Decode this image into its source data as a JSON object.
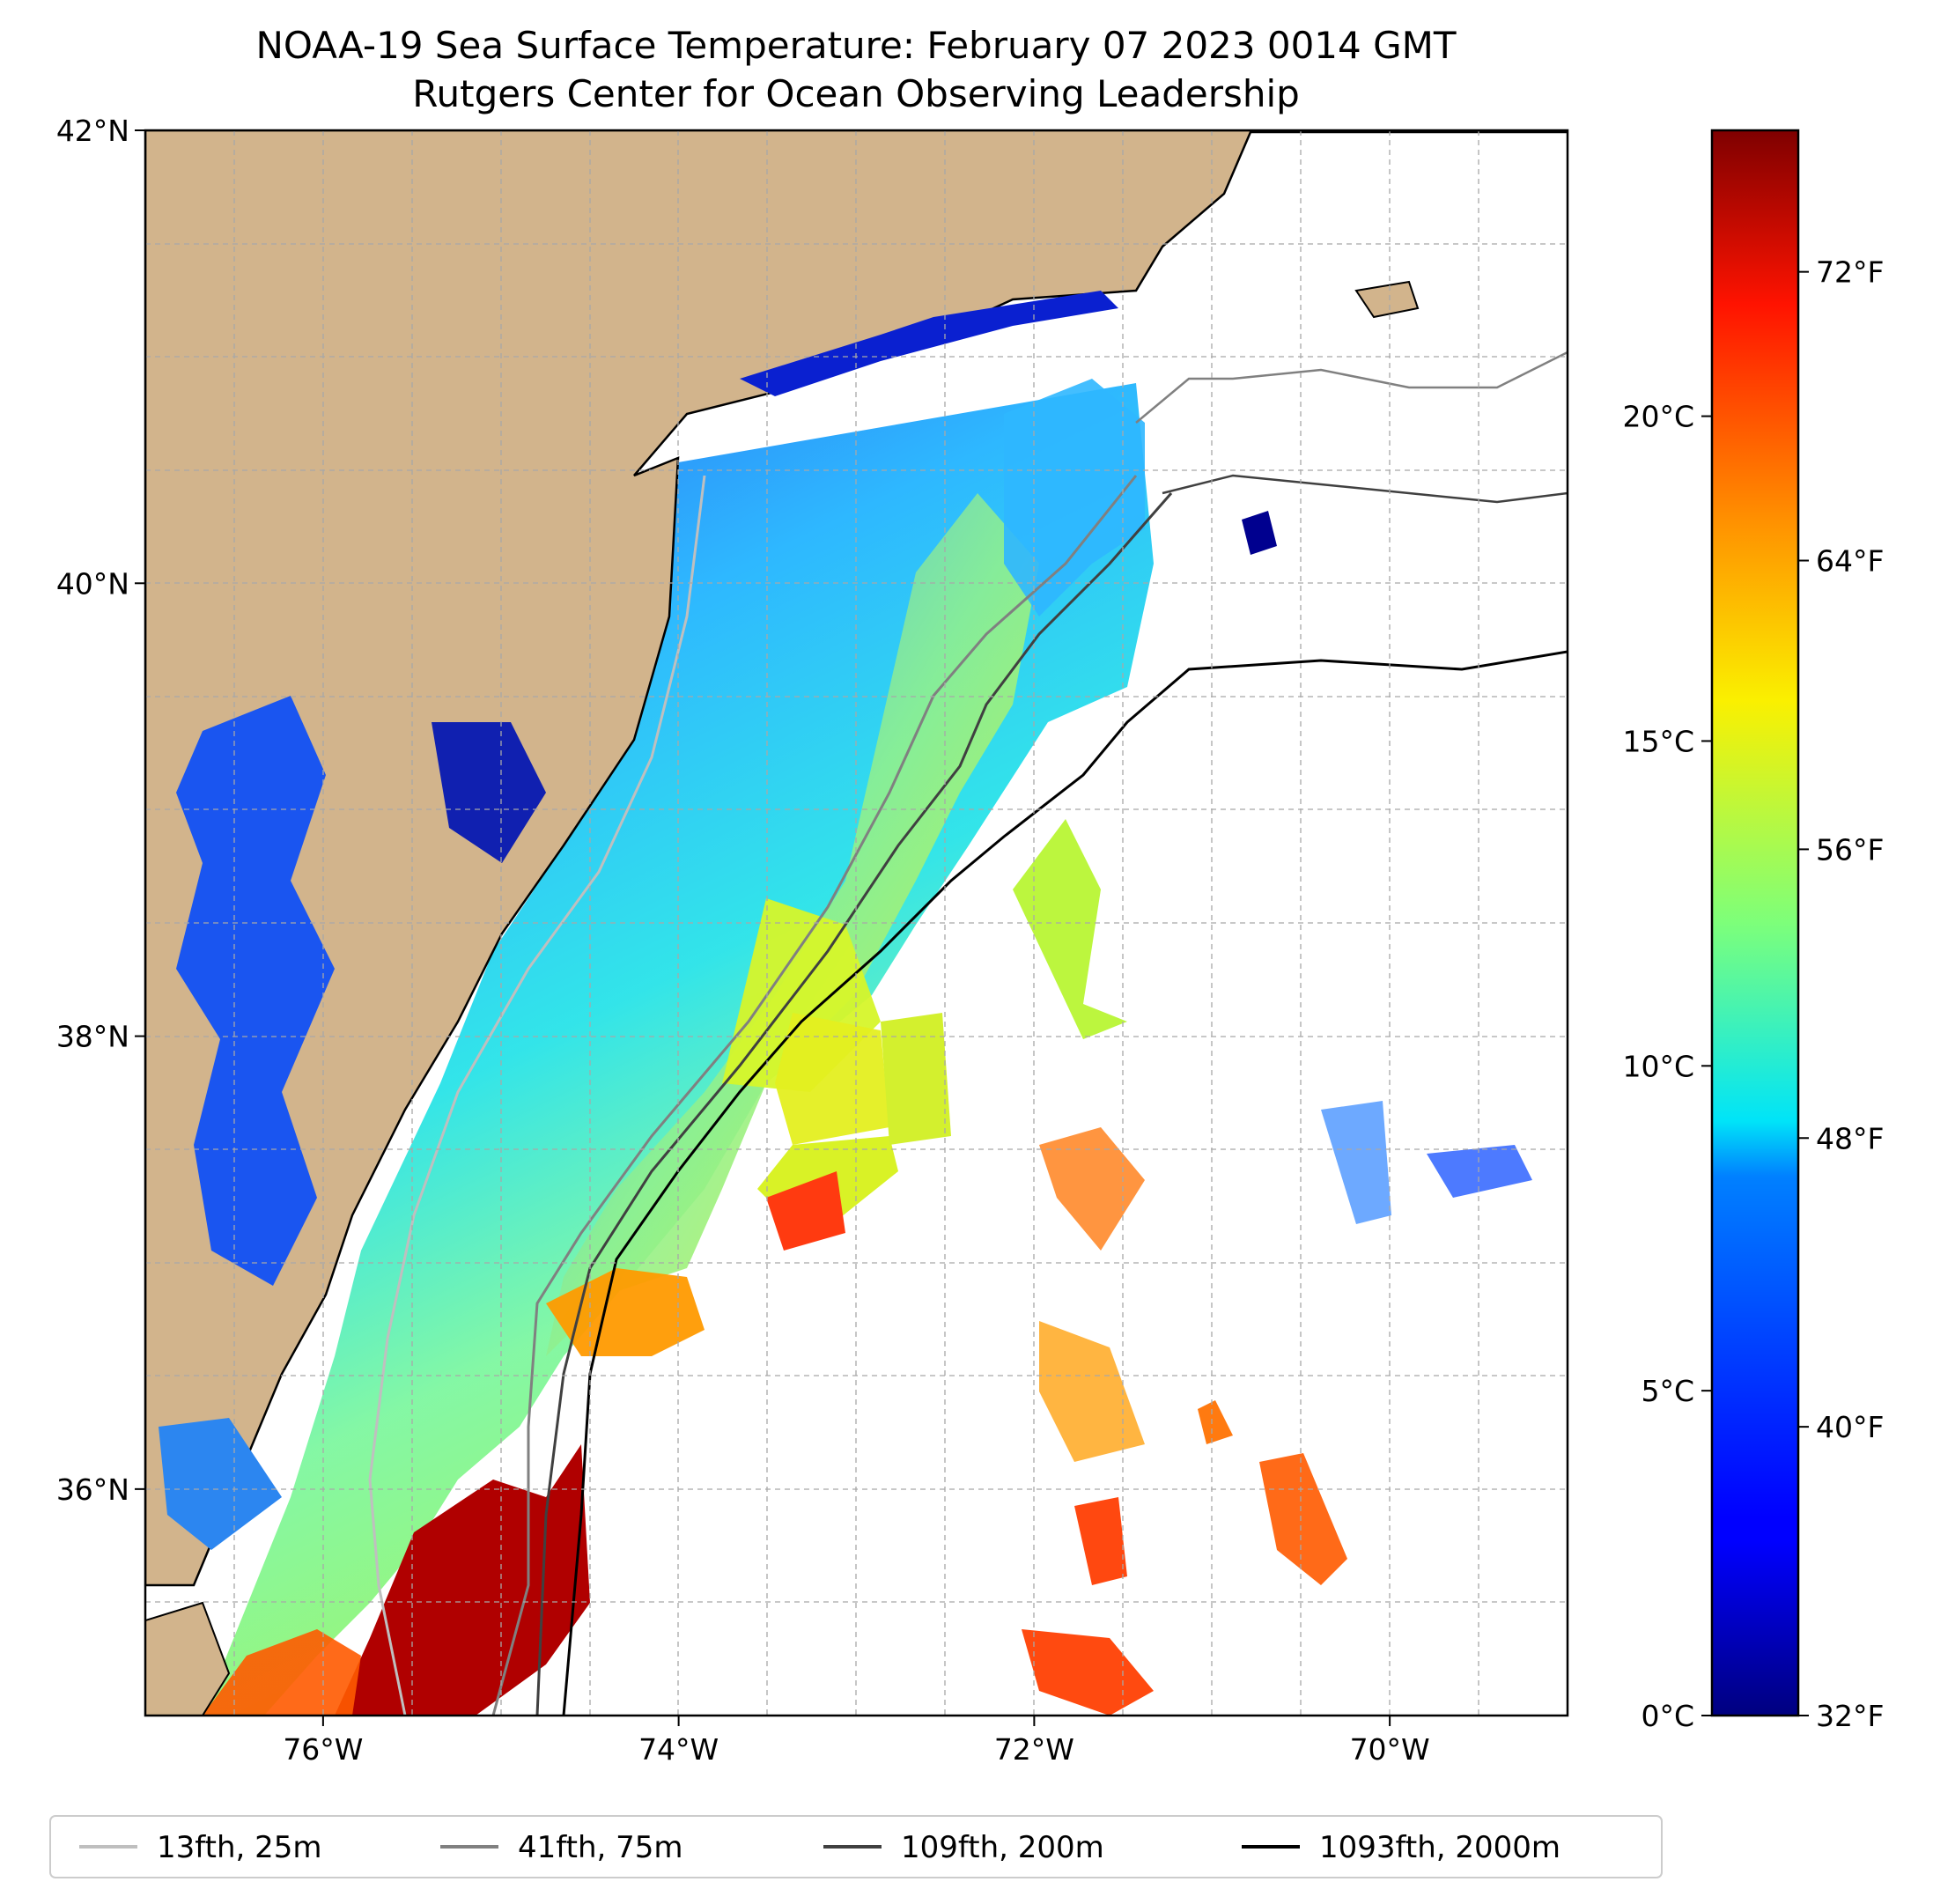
{
  "title": {
    "line1": "NOAA-19 Sea Surface Temperature: February 07 2023 0014 GMT",
    "line2": "Rutgers Center for Ocean Observing Leadership"
  },
  "map": {
    "lon_range": [
      -77.0,
      -69.0
    ],
    "lat_range": [
      35.0,
      42.0
    ],
    "land_color": "#d2b48c",
    "gridlines": true,
    "lon_ticks": [
      {
        "value": -76,
        "label": "76°W"
      },
      {
        "value": -74,
        "label": "74°W"
      },
      {
        "value": -72,
        "label": "72°W"
      },
      {
        "value": -70,
        "label": "70°W"
      }
    ],
    "lat_ticks": [
      {
        "value": 42,
        "label": "42°N"
      },
      {
        "value": 40,
        "label": "40°N"
      },
      {
        "value": 38,
        "label": "38°N"
      },
      {
        "value": 36,
        "label": "36°N"
      }
    ]
  },
  "colorbar": {
    "colormap": "jet",
    "range_celsius": [
      0,
      24.4
    ],
    "celsius_ticks": [
      {
        "value": 0,
        "label": "0°C"
      },
      {
        "value": 5,
        "label": "5°C"
      },
      {
        "value": 10,
        "label": "10°C"
      },
      {
        "value": 15,
        "label": "15°C"
      },
      {
        "value": 20,
        "label": "20°C"
      }
    ],
    "fahrenheit_ticks": [
      {
        "value": 32,
        "label": "32°F"
      },
      {
        "value": 40,
        "label": "40°F"
      },
      {
        "value": 48,
        "label": "48°F"
      },
      {
        "value": 56,
        "label": "56°F"
      },
      {
        "value": 64,
        "label": "64°F"
      },
      {
        "value": 72,
        "label": "72°F"
      }
    ]
  },
  "legend": {
    "placement": "bottom",
    "items": [
      {
        "label": "13fth, 25m",
        "color": "#bfbfbf"
      },
      {
        "label": "41fth, 75m",
        "color": "#808080"
      },
      {
        "label": "109fth, 200m",
        "color": "#404040"
      },
      {
        "label": "1093fth, 2000m",
        "color": "#000000"
      }
    ]
  }
}
